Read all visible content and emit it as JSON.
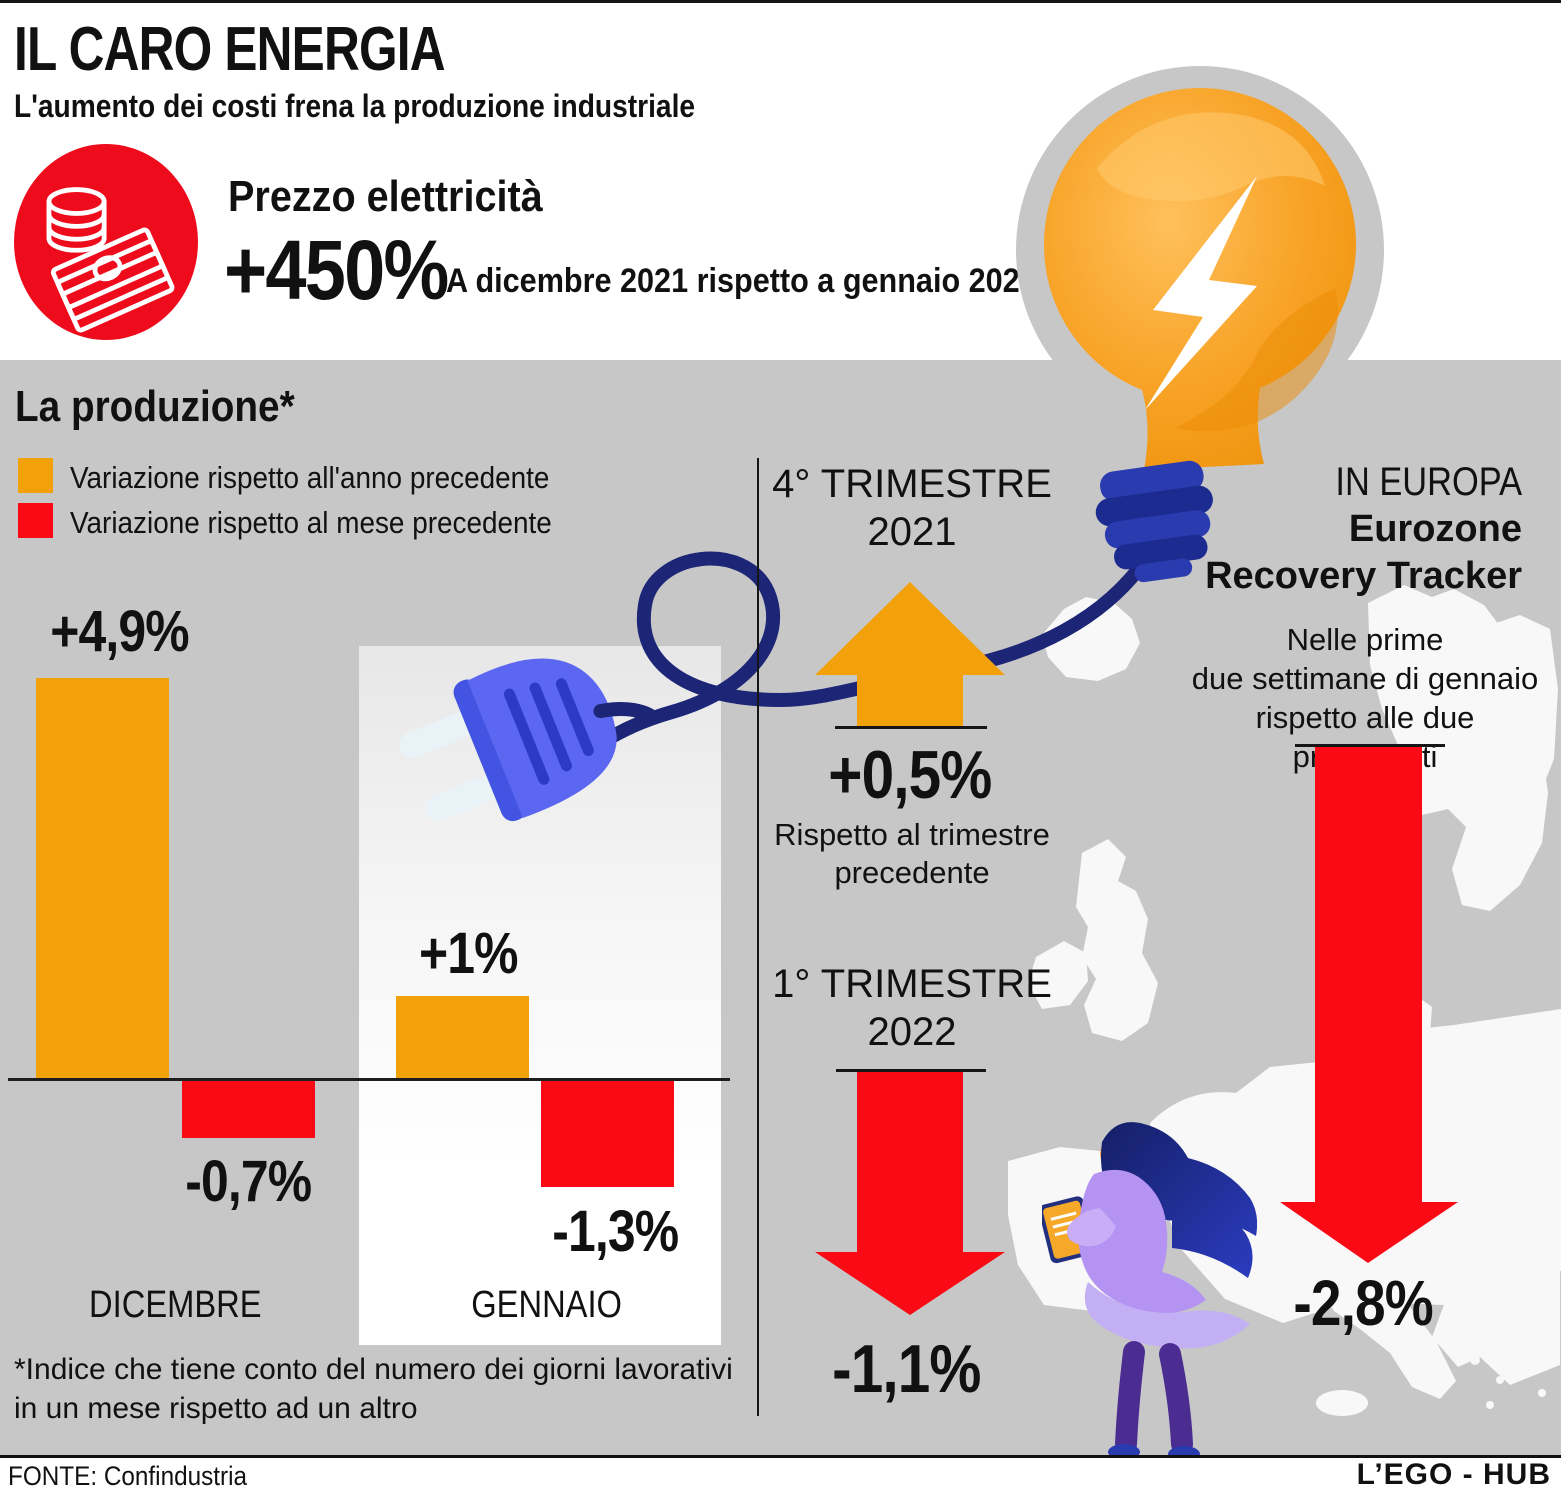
{
  "header": {
    "title": "IL CARO ENERGIA",
    "subtitle": "L'aumento dei costi frena la produzione industriale"
  },
  "electricity": {
    "label": "Prezzo elettricità",
    "value": "+450%",
    "note": "A dicembre 2021 rispetto a gennaio 2021",
    "badge_color": "#ee0b1c",
    "icon": "money-banknotes-coins-icon"
  },
  "production": {
    "title": "La produzione*",
    "footnote": "*Indice che tiene conto del numero dei giorni lavorativi\nin un mese rispetto ad un altro"
  },
  "chart_data": {
    "type": "bar",
    "title": "La produzione*",
    "categories": [
      "DICEMBRE",
      "GENNAIO"
    ],
    "series": [
      {
        "name": "Variazione rispetto all'anno precedente",
        "color": "#f2a10b",
        "values": [
          4.9,
          1.0
        ],
        "display_values": [
          "+4,9%",
          "+1%"
        ]
      },
      {
        "name": "Variazione rispetto al mese precedente",
        "color": "#fa0a14",
        "values": [
          -0.7,
          -1.3
        ],
        "display_values": [
          "-0,7%",
          "-1,3%"
        ]
      }
    ],
    "ylabel": "%",
    "ylim": [
      -1.5,
      5
    ],
    "grid": false,
    "legend_position": "top-left",
    "baseline": 0
  },
  "quarter_q4": {
    "title": "4° TRIMESTRE\n2021",
    "value": "+0,5%",
    "numeric_value": 0.5,
    "caption": "Rispetto al trimestre\nprecedente",
    "direction": "up",
    "arrow_color": "#f2a10b"
  },
  "quarter_q1": {
    "title": "1° TRIMESTRE\n2022",
    "value": "-1,1%",
    "numeric_value": -1.1,
    "direction": "down",
    "arrow_color": "#fa0a14"
  },
  "europe": {
    "kicker": "IN EUROPA",
    "title": "Eurozone\nRecovery Tracker",
    "caption": "Nelle prime\ndue settimane di gennaio\nrispetto alle due precedenti",
    "value": "-2,8%",
    "numeric_value": -2.8,
    "direction": "down",
    "arrow_color": "#fa0a14"
  },
  "colors": {
    "section_bg": "#c7c7c7",
    "orange": "#f2a10b",
    "red": "#fa0a14",
    "navy": "#1d2576",
    "plug_blue": "#5b67f1"
  },
  "footer": {
    "source": "FONTE: Confindustria",
    "credit": "L’EGO - HUB"
  }
}
